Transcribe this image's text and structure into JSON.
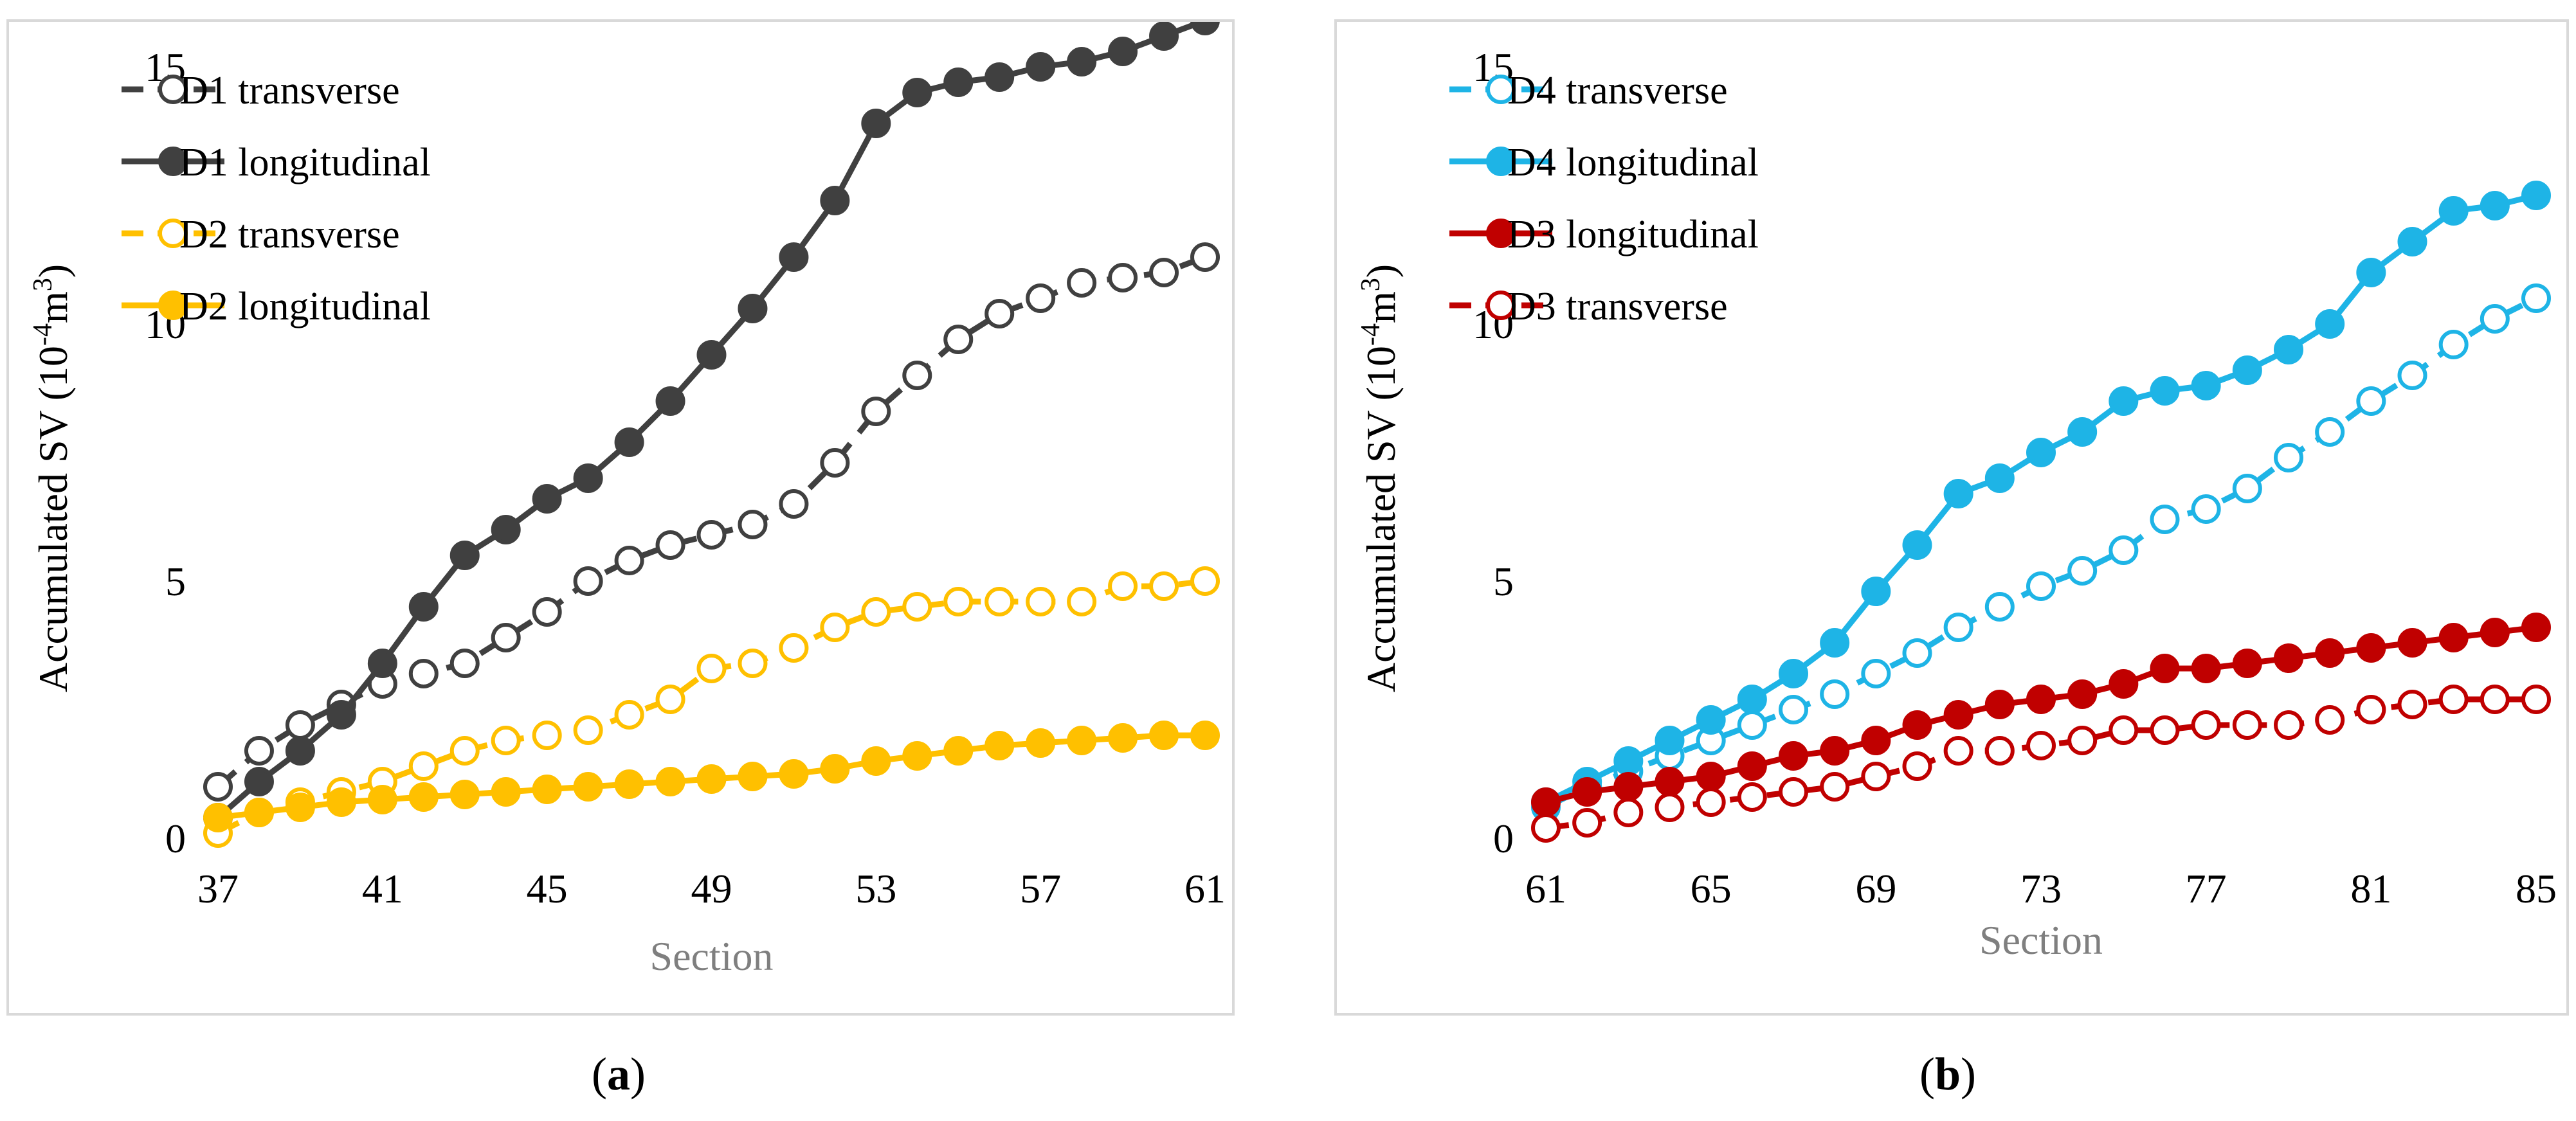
{
  "chart_data": [
    {
      "id": "a",
      "type": "line",
      "panel_label": "a",
      "xlabel": "Section",
      "ylabel": "Accumulated SV (10",
      "ylabel_exp": "-4",
      "ylabel_unit": "m",
      "ylabel_unit_exp": "3",
      "ylabel_close": ")",
      "x": [
        37,
        38,
        39,
        40,
        41,
        42,
        43,
        44,
        45,
        46,
        47,
        48,
        49,
        50,
        51,
        52,
        53,
        54,
        55,
        56,
        57,
        58,
        59,
        60,
        61
      ],
      "xlim": [
        37,
        61
      ],
      "ylim": [
        0,
        15
      ],
      "xticks": [
        "37",
        "41",
        "45",
        "49",
        "53",
        "57",
        "61"
      ],
      "yticks": [
        "0",
        "5",
        "10",
        "15"
      ],
      "legend_position": "top-left",
      "series": [
        {
          "name": "D1 transverse",
          "color": "#404040",
          "marker": "open",
          "dash": true,
          "values": [
            1.0,
            1.7,
            2.2,
            2.6,
            3.0,
            3.2,
            3.4,
            3.9,
            4.4,
            5.0,
            5.4,
            5.7,
            5.9,
            6.1,
            6.5,
            7.3,
            8.3,
            9.0,
            9.7,
            10.2,
            10.5,
            10.8,
            10.9,
            11.0,
            11.3
          ]
        },
        {
          "name": "D1 longitudinal",
          "color": "#404040",
          "marker": "filled",
          "dash": false,
          "values": [
            0.4,
            1.1,
            1.7,
            2.4,
            3.4,
            4.5,
            5.5,
            6.0,
            6.6,
            7.0,
            7.7,
            8.5,
            9.4,
            10.3,
            11.3,
            12.4,
            13.9,
            14.5,
            14.7,
            14.8,
            15.0,
            15.1,
            15.3,
            15.6,
            15.9
          ]
        },
        {
          "name": "D2 transverse",
          "color": "#ffc000",
          "marker": "open",
          "dash": true,
          "values": [
            0.1,
            0.5,
            0.7,
            0.9,
            1.1,
            1.4,
            1.7,
            1.9,
            2.0,
            2.1,
            2.4,
            2.7,
            3.3,
            3.4,
            3.7,
            4.1,
            4.4,
            4.5,
            4.6,
            4.6,
            4.6,
            4.6,
            4.9,
            4.9,
            5.0
          ]
        },
        {
          "name": "D2 longitudinal",
          "color": "#ffc000",
          "marker": "filled",
          "dash": false,
          "values": [
            0.4,
            0.5,
            0.6,
            0.7,
            0.75,
            0.8,
            0.85,
            0.9,
            0.95,
            1.0,
            1.05,
            1.1,
            1.15,
            1.2,
            1.25,
            1.35,
            1.5,
            1.6,
            1.7,
            1.8,
            1.85,
            1.9,
            1.95,
            2.0,
            2.0
          ]
        }
      ]
    },
    {
      "id": "b",
      "type": "line",
      "panel_label": "b",
      "xlabel": "Section",
      "ylabel": "Accumulated SV (10",
      "ylabel_exp": "-4",
      "ylabel_unit": "m",
      "ylabel_unit_exp": "3",
      "ylabel_close": ")",
      "x": [
        61,
        62,
        63,
        64,
        65,
        66,
        67,
        68,
        69,
        70,
        71,
        72,
        73,
        74,
        75,
        76,
        77,
        78,
        79,
        80,
        81,
        82,
        83,
        84,
        85
      ],
      "xlim": [
        61,
        85
      ],
      "ylim": [
        0,
        15
      ],
      "xticks": [
        "61",
        "65",
        "69",
        "73",
        "77",
        "81",
        "85"
      ],
      "yticks": [
        "0",
        "5",
        "10",
        "15"
      ],
      "legend_position": "top-left",
      "series": [
        {
          "name": "D4 transverse",
          "color": "#1eb4e6",
          "marker": "open",
          "dash": true,
          "values": [
            0.6,
            1.0,
            1.3,
            1.6,
            1.9,
            2.2,
            2.5,
            2.8,
            3.2,
            3.6,
            4.1,
            4.5,
            4.9,
            5.2,
            5.6,
            6.2,
            6.4,
            6.8,
            7.4,
            7.9,
            8.5,
            9.0,
            9.6,
            10.1,
            10.5
          ]
        },
        {
          "name": "D4 longitudinal",
          "color": "#1eb4e6",
          "marker": "filled",
          "dash": false,
          "values": [
            0.7,
            1.1,
            1.5,
            1.9,
            2.3,
            2.7,
            3.2,
            3.8,
            4.8,
            5.7,
            6.7,
            7.0,
            7.5,
            7.9,
            8.5,
            8.7,
            8.8,
            9.1,
            9.5,
            10.0,
            11.0,
            11.6,
            12.2,
            12.3,
            12.5
          ]
        },
        {
          "name": "D3 longitudinal",
          "color": "#c00000",
          "marker": "filled",
          "dash": false,
          "values": [
            0.7,
            0.9,
            1.0,
            1.1,
            1.2,
            1.4,
            1.6,
            1.7,
            1.9,
            2.2,
            2.4,
            2.6,
            2.7,
            2.8,
            3.0,
            3.3,
            3.3,
            3.4,
            3.5,
            3.6,
            3.7,
            3.8,
            3.9,
            4.0,
            4.1
          ]
        },
        {
          "name": "D3 transverse",
          "color": "#c00000",
          "marker": "open",
          "dash": true,
          "values": [
            0.2,
            0.3,
            0.5,
            0.6,
            0.7,
            0.8,
            0.9,
            1.0,
            1.2,
            1.4,
            1.7,
            1.7,
            1.8,
            1.9,
            2.1,
            2.1,
            2.2,
            2.2,
            2.2,
            2.3,
            2.5,
            2.6,
            2.7,
            2.7,
            2.7
          ]
        }
      ]
    }
  ]
}
